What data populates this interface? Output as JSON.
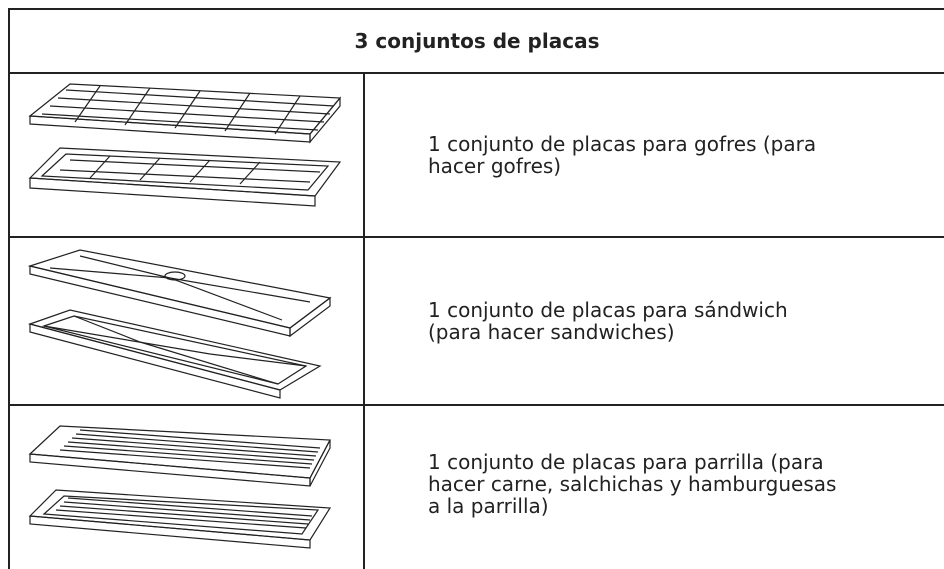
{
  "table": {
    "header": "3 conjuntos de placas",
    "rows": [
      {
        "lines": [
          "1 conjunto de placas para gofres (para",
          "hacer gofres)"
        ]
      },
      {
        "lines": [
          "1 conjunto de placas para sándwich",
          "(para hacer sandwiches)"
        ]
      },
      {
        "lines": [
          "1 conjunto de placas para parrilla (para",
          "hacer carne, salchichas y hamburguesas",
          "a la parrilla)"
        ]
      }
    ]
  }
}
